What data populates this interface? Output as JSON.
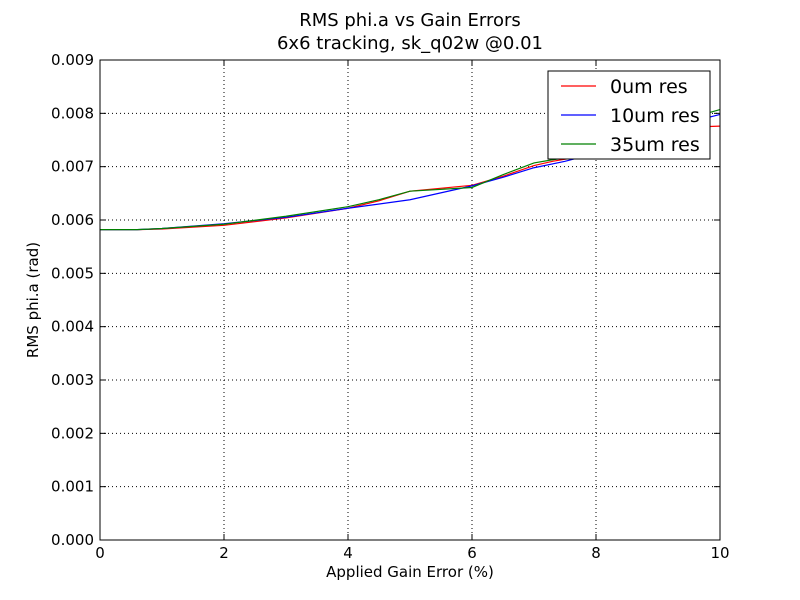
{
  "chart_data": {
    "type": "line",
    "title": "RMS phi.a vs Gain Errors",
    "subtitle": "6x6 tracking, sk_q02w @0.01",
    "xlabel": "Applied Gain Error (%)",
    "ylabel": "RMS phi.a (rad)",
    "xlim": [
      0,
      10
    ],
    "ylim": [
      0,
      0.009
    ],
    "xticks": [
      "0",
      "2",
      "4",
      "6",
      "8",
      "10"
    ],
    "yticks": [
      "0.000",
      "0.001",
      "0.002",
      "0.003",
      "0.004",
      "0.005",
      "0.006",
      "0.007",
      "0.008",
      "0.009"
    ],
    "grid": true,
    "legend_position": "upper-right",
    "series": [
      {
        "name": "0um res",
        "color": "#ff0000",
        "x": [
          0,
          0.6,
          1,
          2,
          3,
          4,
          4.5,
          5,
          6,
          6.5,
          7,
          7.3,
          7.6,
          8,
          8.5,
          9,
          10
        ],
        "y": [
          0.00582,
          0.00582,
          0.00583,
          0.0059,
          0.00604,
          0.00622,
          0.00636,
          0.00654,
          0.00665,
          0.00682,
          0.00702,
          0.0071,
          0.00716,
          0.0073,
          0.00755,
          0.00772,
          0.00776
        ]
      },
      {
        "name": "10um res",
        "color": "#0000ff",
        "x": [
          0,
          0.6,
          1,
          2,
          3,
          4,
          5,
          6,
          6.5,
          7,
          7.5,
          8,
          8.5,
          9,
          10
        ],
        "y": [
          0.00582,
          0.00582,
          0.00584,
          0.00593,
          0.00605,
          0.00622,
          0.00638,
          0.00664,
          0.0068,
          0.00698,
          0.0071,
          0.00725,
          0.00745,
          0.00768,
          0.00798
        ]
      },
      {
        "name": "35um res",
        "color": "#008000",
        "x": [
          0,
          0.6,
          1,
          2,
          3,
          4,
          4.5,
          5,
          6,
          6.5,
          7,
          7.3,
          7.6,
          8,
          8.5,
          9,
          10
        ],
        "y": [
          0.00582,
          0.00582,
          0.00584,
          0.00592,
          0.00607,
          0.00625,
          0.00638,
          0.00654,
          0.00661,
          0.00685,
          0.00707,
          0.00713,
          0.00718,
          0.00733,
          0.00755,
          0.00774,
          0.00807
        ]
      }
    ]
  }
}
